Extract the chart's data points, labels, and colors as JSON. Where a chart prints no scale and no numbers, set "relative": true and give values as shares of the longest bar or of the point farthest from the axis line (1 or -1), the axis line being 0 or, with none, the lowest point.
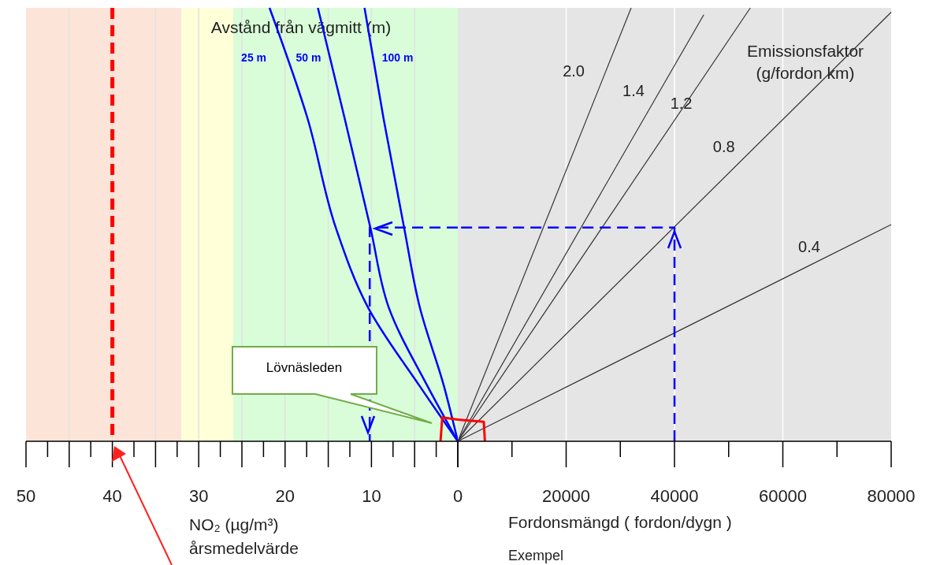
{
  "chart_data": [
    {
      "type": "line",
      "relative": true,
      "legend_title": "Avstånd från vägmitt (m)",
      "xlabel": "NO₂ (µg/m³) årsmedelvärde",
      "xlim": [
        50,
        0
      ],
      "xticks": [
        50,
        {
          "value": 45,
          "label": null
        },
        40,
        {
          "value": 35,
          "label": null
        },
        30,
        {
          "value": 25,
          "label": null
        },
        20,
        {
          "value": 15,
          "label": null
        },
        10,
        {
          "value": 5,
          "label": null
        },
        0
      ],
      "grid": "x",
      "legend": false,
      "bands": [
        {
          "axis": "x",
          "from": 50,
          "to": 32,
          "color": "#fde4d8"
        },
        {
          "axis": "x",
          "from": 32,
          "to": 26,
          "color": "#ffffd8"
        },
        {
          "axis": "x",
          "from": 26,
          "to": 0,
          "color": "#d8fdd8"
        }
      ],
      "ref_lines": [
        {
          "axis": "x",
          "value": 40,
          "color": "#ff0000",
          "line_style": "dashed"
        }
      ],
      "series": [
        {
          "name": "25 m",
          "color": "#0000ff",
          "x": [
            0,
            4.4,
            10.4,
            14.1,
            17.4,
            21.8
          ],
          "values": [
            0,
            0.127,
            0.309,
            0.491,
            0.745,
            1
          ]
        },
        {
          "name": "50 m",
          "color": "#0000ff",
          "x": [
            0,
            3.5,
            8.0,
            10.1,
            13.1,
            16.2
          ],
          "values": [
            0,
            0.127,
            0.309,
            0.491,
            0.745,
            1
          ]
        },
        {
          "name": "100 m",
          "color": "#0000ff",
          "x": [
            0,
            1.6,
            4.4,
            6.2,
            8.6,
            10.8
          ],
          "values": [
            0,
            0.127,
            0.309,
            0.491,
            0.745,
            1
          ]
        },
        {
          "color": "#0000ff",
          "line_style": "dashed",
          "x": [
            0,
            10.2,
            10.2
          ],
          "values": [
            0.493,
            0.493,
            0
          ]
        },
        {
          "color": "#ff0000",
          "x": [
            2.0,
            1.8,
            0
          ],
          "values": [
            0,
            0.055,
            0.05
          ]
        }
      ],
      "annotations": [
        "Lövnäsleden",
        "Exempel"
      ]
    },
    {
      "type": "line",
      "relative": true,
      "legend_title": "Emissionsfaktor (g/fordon km)",
      "xlabel": "Fordonsmängd ( fordon/dygn )",
      "xlim": [
        0,
        80000
      ],
      "xticks": [
        {
          "value": 0,
          "label": null
        },
        20000,
        40000,
        60000,
        80000
      ],
      "grid": "x",
      "legend": false,
      "bands": [
        {
          "axis": "x",
          "from": 0,
          "to": 80000,
          "color": "#e5e5e5"
        }
      ],
      "series": [
        {
          "name": "2.0",
          "color": "#333333",
          "x": [
            0,
            32000
          ],
          "values": [
            0,
            1
          ]
        },
        {
          "name": "1.4",
          "color": "#333333",
          "x": [
            0,
            45400
          ],
          "values": [
            0,
            0.984
          ]
        },
        {
          "name": "1.2",
          "color": "#333333",
          "x": [
            0,
            54000
          ],
          "values": [
            0,
            1
          ]
        },
        {
          "name": "0.8",
          "color": "#333333",
          "x": [
            0,
            80000
          ],
          "values": [
            0,
            0.99
          ]
        },
        {
          "name": "0.4",
          "color": "#333333",
          "x": [
            0,
            80000
          ],
          "values": [
            0,
            0.5
          ]
        },
        {
          "color": "#0000ff",
          "line_style": "dashed",
          "x": [
            40000,
            40000,
            0
          ],
          "values": [
            0,
            0.493,
            0.493
          ]
        },
        {
          "color": "#ff0000",
          "x": [
            0,
            4800,
            5000
          ],
          "values": [
            0.05,
            0.045,
            0
          ]
        }
      ]
    }
  ]
}
